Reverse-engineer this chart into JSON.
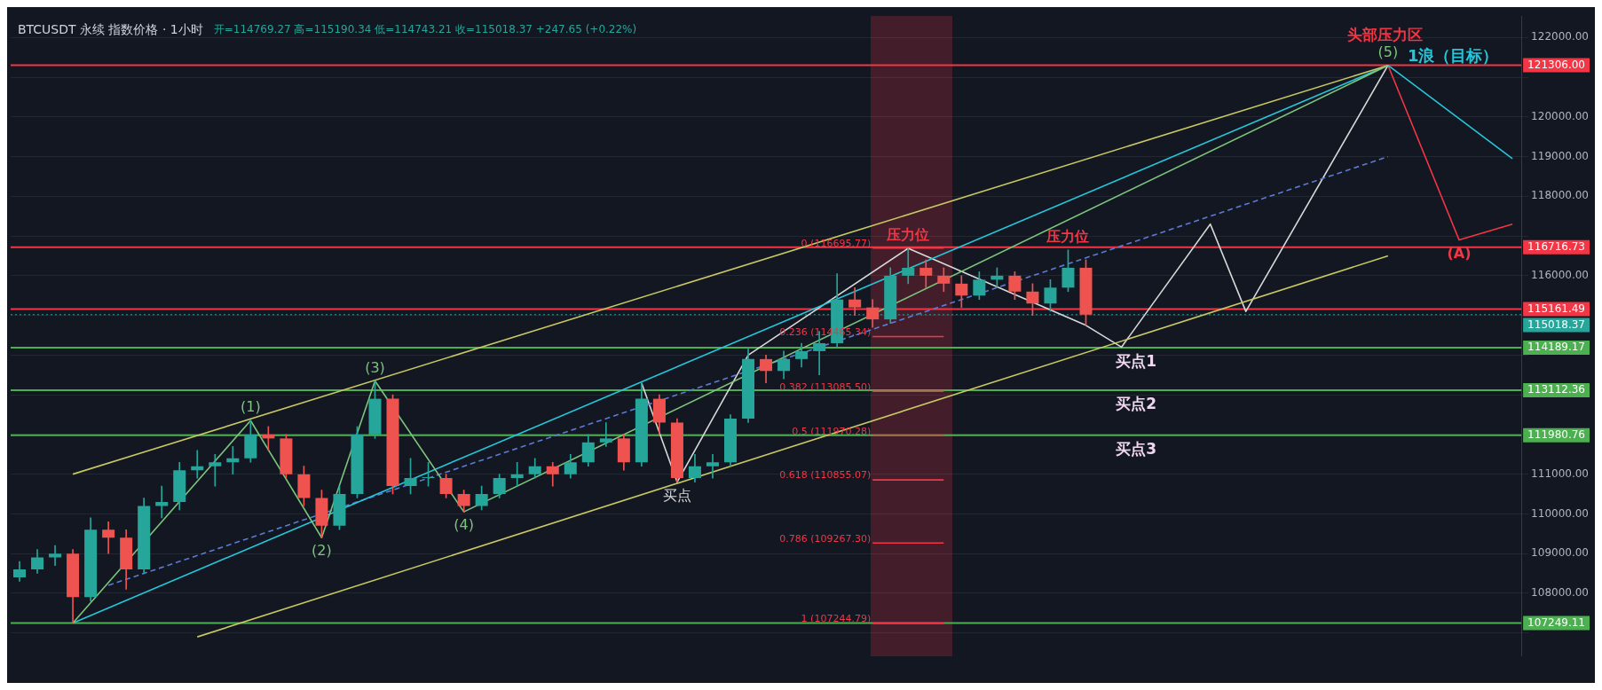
{
  "chart_data": {
    "type": "candlestick",
    "title": "BTCUSDT 永续 指数价格 · 1小时",
    "subtitle": "开=114769.27 高=115190.34 低=114743.21 收=115018.37 +247.65 (+0.22%)",
    "categories": [
      null,
      null,
      null,
      null,
      null,
      null,
      null,
      null,
      null,
      null,
      null,
      null,
      null,
      null,
      null,
      null,
      null,
      null,
      null,
      null,
      null,
      null,
      null,
      null,
      null,
      null,
      null,
      null,
      null,
      null,
      null,
      null,
      null,
      null,
      null,
      null,
      null,
      null,
      null,
      null,
      null,
      null,
      null,
      null,
      null,
      null,
      null,
      null,
      null,
      null,
      null,
      null,
      null,
      null,
      null,
      null,
      null,
      null,
      null,
      null,
      null,
      null,
      null,
      null,
      null,
      null,
      null,
      null,
      null,
      null,
      null,
      null,
      null,
      null,
      null,
      null,
      null,
      null,
      null,
      null,
      null,
      null,
      null,
      null,
      null
    ],
    "ohlc": [
      [
        108400,
        108800,
        108300,
        108600
      ],
      [
        108600,
        109100,
        108500,
        108900
      ],
      [
        108900,
        109200,
        108700,
        109000
      ],
      [
        109000,
        109100,
        107250,
        107900
      ],
      [
        107900,
        109900,
        107800,
        109600
      ],
      [
        109600,
        109800,
        109000,
        109400
      ],
      [
        109400,
        109600,
        108100,
        108600
      ],
      [
        108600,
        110400,
        108500,
        110200
      ],
      [
        110200,
        110700,
        109900,
        110300
      ],
      [
        110300,
        111300,
        110100,
        111100
      ],
      [
        111100,
        111600,
        110900,
        111200
      ],
      [
        111200,
        111500,
        110700,
        111300
      ],
      [
        111300,
        111700,
        111000,
        111400
      ],
      [
        111400,
        112350,
        111300,
        112000
      ],
      [
        112000,
        112200,
        111600,
        111900
      ],
      [
        111900,
        112000,
        110900,
        111000
      ],
      [
        111000,
        111200,
        110200,
        110400
      ],
      [
        110400,
        110600,
        109400,
        109700
      ],
      [
        109700,
        110700,
        109600,
        110500
      ],
      [
        110500,
        112200,
        110400,
        112000
      ],
      [
        112000,
        113350,
        111900,
        112900
      ],
      [
        112900,
        113000,
        110500,
        110700
      ],
      [
        110700,
        111400,
        110500,
        110900
      ],
      [
        110900,
        111300,
        110700,
        110900
      ],
      [
        110900,
        111000,
        110400,
        110500
      ],
      [
        110500,
        110600,
        110050,
        110200
      ],
      [
        110200,
        110700,
        110100,
        110500
      ],
      [
        110500,
        111000,
        110400,
        110900
      ],
      [
        110900,
        111300,
        110700,
        111000
      ],
      [
        111000,
        111400,
        110900,
        111200
      ],
      [
        111200,
        111300,
        110700,
        111000
      ],
      [
        111000,
        111500,
        110900,
        111300
      ],
      [
        111300,
        112000,
        111200,
        111800
      ],
      [
        111800,
        112300,
        111700,
        111900
      ],
      [
        111900,
        112000,
        111100,
        111300
      ],
      [
        111300,
        113300,
        111200,
        112900
      ],
      [
        112900,
        113000,
        112000,
        112300
      ],
      [
        112300,
        112400,
        110800,
        110900
      ],
      [
        110900,
        111500,
        110800,
        111200
      ],
      [
        111200,
        111500,
        110900,
        111300
      ],
      [
        111300,
        112500,
        111200,
        112400
      ],
      [
        112400,
        114200,
        112300,
        113900
      ],
      [
        113900,
        114000,
        113300,
        113600
      ],
      [
        113600,
        114100,
        113400,
        113900
      ],
      [
        113900,
        114300,
        113700,
        114100
      ],
      [
        114100,
        114600,
        113500,
        114300
      ],
      [
        114300,
        116050,
        114200,
        115400
      ],
      [
        115400,
        115700,
        115000,
        115200
      ],
      [
        115200,
        115400,
        114700,
        114900
      ],
      [
        114900,
        116200,
        114800,
        116000
      ],
      [
        116000,
        116700,
        115800,
        116200
      ],
      [
        116200,
        116400,
        115700,
        116000
      ],
      [
        116000,
        116200,
        115600,
        115800
      ],
      [
        115800,
        116000,
        115200,
        115500
      ],
      [
        115500,
        116100,
        115400,
        115900
      ],
      [
        115900,
        116200,
        115700,
        116000
      ],
      [
        116000,
        116100,
        115400,
        115600
      ],
      [
        115600,
        115800,
        115000,
        115300
      ],
      [
        115300,
        115900,
        115100,
        115700
      ],
      [
        115700,
        116650,
        115600,
        116200
      ],
      [
        116200,
        116400,
        114750,
        115018.37
      ],
      null,
      null,
      null,
      null,
      null,
      null,
      null,
      null,
      null,
      null,
      null,
      null,
      null,
      null,
      null,
      null,
      null,
      null,
      null,
      null,
      null,
      null,
      null,
      null
    ],
    "series": [
      {
        "type": "line",
        "color": "#7cc47c",
        "values": [
          null,
          null,
          null,
          107250,
          null,
          null,
          null,
          null,
          null,
          null,
          null,
          null,
          null,
          112350,
          null,
          null,
          null,
          109400,
          null,
          null,
          113350,
          null,
          null,
          null,
          null,
          110050,
          null,
          null,
          null,
          null,
          null,
          null,
          null,
          null,
          null,
          null,
          null,
          null,
          null,
          null,
          null,
          null,
          null,
          null,
          null,
          null,
          null,
          null,
          null,
          null,
          null,
          null,
          null,
          null,
          null,
          null,
          null,
          null,
          null,
          null,
          null,
          null,
          null,
          null,
          null,
          null,
          null,
          null,
          null,
          null,
          null,
          null,
          null,
          null,
          null,
          null,
          null,
          121300,
          null,
          null,
          null,
          null,
          null,
          null,
          null
        ]
      },
      {
        "type": "line",
        "color": "#c8c864",
        "values": [
          null,
          null,
          null,
          111000,
          null,
          null,
          null,
          null,
          null,
          null,
          null,
          null,
          null,
          null,
          null,
          null,
          null,
          null,
          null,
          null,
          null,
          null,
          null,
          null,
          null,
          null,
          null,
          null,
          null,
          null,
          null,
          null,
          null,
          null,
          null,
          null,
          null,
          null,
          null,
          null,
          null,
          null,
          null,
          null,
          null,
          null,
          null,
          null,
          null,
          null,
          null,
          null,
          null,
          null,
          null,
          null,
          null,
          null,
          null,
          null,
          null,
          null,
          null,
          null,
          null,
          null,
          null,
          null,
          null,
          null,
          null,
          null,
          null,
          null,
          null,
          null,
          null,
          121300,
          null,
          null,
          null,
          null,
          null,
          null,
          null
        ]
      },
      {
        "type": "line",
        "color": "#c8c864",
        "values": [
          null,
          null,
          null,
          null,
          null,
          null,
          null,
          null,
          null,
          null,
          106900,
          null,
          null,
          null,
          null,
          null,
          null,
          null,
          null,
          null,
          null,
          null,
          null,
          null,
          null,
          null,
          null,
          null,
          null,
          null,
          null,
          null,
          null,
          null,
          null,
          null,
          null,
          null,
          null,
          null,
          null,
          null,
          null,
          null,
          null,
          null,
          null,
          null,
          null,
          null,
          null,
          null,
          null,
          null,
          null,
          null,
          null,
          null,
          null,
          null,
          null,
          null,
          null,
          null,
          null,
          null,
          null,
          null,
          null,
          null,
          null,
          null,
          null,
          null,
          null,
          null,
          null,
          116500,
          null,
          null,
          null,
          null,
          null,
          null,
          null
        ]
      },
      {
        "type": "line",
        "color": "#26c6da",
        "values": [
          null,
          null,
          null,
          107250,
          null,
          null,
          null,
          null,
          null,
          null,
          null,
          null,
          null,
          null,
          null,
          null,
          null,
          null,
          null,
          null,
          null,
          null,
          null,
          null,
          null,
          null,
          null,
          null,
          null,
          null,
          null,
          null,
          null,
          null,
          null,
          null,
          null,
          null,
          null,
          null,
          null,
          null,
          null,
          null,
          null,
          null,
          null,
          null,
          null,
          null,
          null,
          null,
          null,
          null,
          null,
          null,
          null,
          null,
          null,
          null,
          null,
          null,
          null,
          null,
          null,
          null,
          null,
          null,
          null,
          null,
          null,
          null,
          null,
          null,
          null,
          null,
          null,
          121300,
          null,
          null,
          null,
          null,
          null,
          null,
          118950
        ]
      },
      {
        "type": "line",
        "color": "#5b7bd5",
        "line_style": "dashed",
        "values": [
          null,
          null,
          null,
          null,
          null,
          108200,
          null,
          null,
          null,
          null,
          null,
          null,
          null,
          null,
          null,
          null,
          null,
          null,
          null,
          null,
          null,
          null,
          null,
          null,
          null,
          null,
          null,
          null,
          null,
          null,
          null,
          null,
          null,
          null,
          null,
          null,
          null,
          null,
          null,
          null,
          null,
          null,
          null,
          null,
          null,
          null,
          null,
          null,
          null,
          null,
          null,
          null,
          null,
          null,
          null,
          null,
          null,
          null,
          null,
          null,
          null,
          null,
          null,
          null,
          null,
          null,
          null,
          null,
          null,
          null,
          null,
          null,
          null,
          null,
          null,
          null,
          null,
          119000,
          null,
          null,
          null,
          null,
          null,
          null,
          null
        ]
      },
      {
        "type": "line",
        "color": "#d8d8d8",
        "values": [
          null,
          null,
          null,
          null,
          null,
          null,
          null,
          null,
          null,
          null,
          null,
          null,
          null,
          null,
          null,
          null,
          null,
          null,
          null,
          null,
          null,
          null,
          null,
          null,
          null,
          null,
          null,
          null,
          null,
          null,
          null,
          null,
          null,
          null,
          null,
          113300,
          null,
          110800,
          null,
          null,
          null,
          114000,
          null,
          null,
          null,
          null,
          null,
          null,
          null,
          null,
          116690,
          null,
          null,
          null,
          null,
          null,
          null,
          null,
          null,
          null,
          114750,
          null,
          114200,
          null,
          null,
          null,
          null,
          117300,
          null,
          115100,
          null,
          null,
          null,
          null,
          null,
          null,
          null,
          121300,
          null,
          null,
          null,
          null,
          null,
          null,
          null
        ]
      },
      {
        "type": "line",
        "color": "#f23645",
        "values": [
          null,
          null,
          null,
          null,
          null,
          null,
          null,
          null,
          null,
          null,
          null,
          null,
          null,
          null,
          null,
          null,
          null,
          null,
          null,
          null,
          null,
          null,
          null,
          null,
          null,
          null,
          null,
          null,
          null,
          null,
          null,
          null,
          null,
          null,
          null,
          null,
          null,
          null,
          null,
          null,
          null,
          null,
          null,
          null,
          null,
          null,
          null,
          null,
          null,
          null,
          null,
          null,
          null,
          null,
          null,
          null,
          null,
          null,
          null,
          null,
          null,
          null,
          null,
          null,
          null,
          null,
          null,
          null,
          null,
          null,
          null,
          null,
          null,
          null,
          null,
          null,
          null,
          121300,
          null,
          null,
          null,
          116900,
          null,
          null,
          117300
        ]
      },
      {
        "type": "line",
        "color": "#f23645",
        "value_labels": [
          null,
          null,
          null,
          null,
          null,
          null,
          null,
          null,
          null,
          null,
          null,
          null,
          null,
          null,
          null,
          null,
          null,
          null,
          null,
          null,
          null,
          null,
          null,
          null,
          null,
          null,
          null,
          null,
          null,
          null,
          null,
          null,
          null,
          null,
          null,
          null,
          null,
          null,
          null,
          null,
          null,
          null,
          null,
          null,
          null,
          null,
          null,
          null,
          "0.236 (114465.34)",
          null,
          null,
          null,
          null,
          null,
          null,
          null,
          null,
          null,
          null,
          null,
          null,
          null,
          null,
          null,
          null,
          null,
          null,
          null,
          null,
          null,
          null,
          null,
          null,
          null,
          null,
          null,
          null,
          null,
          null,
          null,
          null,
          null,
          null,
          null,
          null
        ],
        "values": [
          null,
          null,
          null,
          null,
          null,
          null,
          null,
          null,
          null,
          null,
          null,
          null,
          null,
          null,
          null,
          null,
          null,
          null,
          null,
          null,
          null,
          null,
          null,
          null,
          null,
          null,
          null,
          null,
          null,
          null,
          null,
          null,
          null,
          null,
          null,
          null,
          null,
          null,
          null,
          null,
          null,
          null,
          null,
          null,
          null,
          null,
          null,
          null,
          114465.34,
          null,
          null,
          null,
          114465.34,
          null,
          null,
          null,
          null,
          null,
          null,
          null,
          null,
          null,
          null,
          null,
          null,
          null,
          null,
          null,
          null,
          null,
          null,
          null,
          null,
          null,
          null,
          null,
          null,
          null,
          null,
          null,
          null,
          null,
          null,
          null,
          null
        ]
      },
      {
        "type": "line",
        "color": "#f23645",
        "value_labels": [
          null,
          null,
          null,
          null,
          null,
          null,
          null,
          null,
          null,
          null,
          null,
          null,
          null,
          null,
          null,
          null,
          null,
          null,
          null,
          null,
          null,
          null,
          null,
          null,
          null,
          null,
          null,
          null,
          null,
          null,
          null,
          null,
          null,
          null,
          null,
          null,
          null,
          null,
          null,
          null,
          null,
          null,
          null,
          null,
          null,
          null,
          null,
          null,
          "0.382 (113085.50)",
          null,
          null,
          null,
          null,
          null,
          null,
          null,
          null,
          null,
          null,
          null,
          null,
          null,
          null,
          null,
          null,
          null,
          null,
          null,
          null,
          null,
          null,
          null,
          null,
          null,
          null,
          null,
          null,
          null,
          null,
          null,
          null,
          null,
          null,
          null,
          null
        ],
        "values": [
          null,
          null,
          null,
          null,
          null,
          null,
          null,
          null,
          null,
          null,
          null,
          null,
          null,
          null,
          null,
          null,
          null,
          null,
          null,
          null,
          null,
          null,
          null,
          null,
          null,
          null,
          null,
          null,
          null,
          null,
          null,
          null,
          null,
          null,
          null,
          null,
          null,
          null,
          null,
          null,
          null,
          null,
          null,
          null,
          null,
          null,
          null,
          null,
          113085.5,
          null,
          null,
          null,
          113085.5,
          null,
          null,
          null,
          null,
          null,
          null,
          null,
          null,
          null,
          null,
          null,
          null,
          null,
          null,
          null,
          null,
          null,
          null,
          null,
          null,
          null,
          null,
          null,
          null,
          null,
          null,
          null,
          null,
          null,
          null,
          null,
          null
        ]
      },
      {
        "type": "line",
        "color": "#f23645",
        "value_labels": [
          null,
          null,
          null,
          null,
          null,
          null,
          null,
          null,
          null,
          null,
          null,
          null,
          null,
          null,
          null,
          null,
          null,
          null,
          null,
          null,
          null,
          null,
          null,
          null,
          null,
          null,
          null,
          null,
          null,
          null,
          null,
          null,
          null,
          null,
          null,
          null,
          null,
          null,
          null,
          null,
          null,
          null,
          null,
          null,
          null,
          null,
          null,
          null,
          "0.5 (111970.28)",
          null,
          null,
          null,
          null,
          null,
          null,
          null,
          null,
          null,
          null,
          null,
          null,
          null,
          null,
          null,
          null,
          null,
          null,
          null,
          null,
          null,
          null,
          null,
          null,
          null,
          null,
          null,
          null,
          null,
          null,
          null,
          null,
          null,
          null,
          null,
          null
        ],
        "values": [
          null,
          null,
          null,
          null,
          null,
          null,
          null,
          null,
          null,
          null,
          null,
          null,
          null,
          null,
          null,
          null,
          null,
          null,
          null,
          null,
          null,
          null,
          null,
          null,
          null,
          null,
          null,
          null,
          null,
          null,
          null,
          null,
          null,
          null,
          null,
          null,
          null,
          null,
          null,
          null,
          null,
          null,
          null,
          null,
          null,
          null,
          null,
          null,
          111970.28,
          null,
          null,
          null,
          111970.28,
          null,
          null,
          null,
          null,
          null,
          null,
          null,
          null,
          null,
          null,
          null,
          null,
          null,
          null,
          null,
          null,
          null,
          null,
          null,
          null,
          null,
          null,
          null,
          null,
          null,
          null,
          null,
          null,
          null,
          null,
          null,
          null
        ]
      },
      {
        "type": "line",
        "color": "#f23645",
        "value_labels": [
          null,
          null,
          null,
          null,
          null,
          null,
          null,
          null,
          null,
          null,
          null,
          null,
          null,
          null,
          null,
          null,
          null,
          null,
          null,
          null,
          null,
          null,
          null,
          null,
          null,
          null,
          null,
          null,
          null,
          null,
          null,
          null,
          null,
          null,
          null,
          null,
          null,
          null,
          null,
          null,
          null,
          null,
          null,
          null,
          null,
          null,
          null,
          null,
          "0.618 (110855.07)",
          null,
          null,
          null,
          null,
          null,
          null,
          null,
          null,
          null,
          null,
          null,
          null,
          null,
          null,
          null,
          null,
          null,
          null,
          null,
          null,
          null,
          null,
          null,
          null,
          null,
          null,
          null,
          null,
          null,
          null,
          null,
          null,
          null,
          null,
          null,
          null
        ],
        "values": [
          null,
          null,
          null,
          null,
          null,
          null,
          null,
          null,
          null,
          null,
          null,
          null,
          null,
          null,
          null,
          null,
          null,
          null,
          null,
          null,
          null,
          null,
          null,
          null,
          null,
          null,
          null,
          null,
          null,
          null,
          null,
          null,
          null,
          null,
          null,
          null,
          null,
          null,
          null,
          null,
          null,
          null,
          null,
          null,
          null,
          null,
          null,
          null,
          110855.07,
          null,
          null,
          null,
          110855.07,
          null,
          null,
          null,
          null,
          null,
          null,
          null,
          null,
          null,
          null,
          null,
          null,
          null,
          null,
          null,
          null,
          null,
          null,
          null,
          null,
          null,
          null,
          null,
          null,
          null,
          null,
          null,
          null,
          null,
          null,
          null,
          null
        ]
      },
      {
        "type": "line",
        "color": "#f23645",
        "value_labels": [
          null,
          null,
          null,
          null,
          null,
          null,
          null,
          null,
          null,
          null,
          null,
          null,
          null,
          null,
          null,
          null,
          null,
          null,
          null,
          null,
          null,
          null,
          null,
          null,
          null,
          null,
          null,
          null,
          null,
          null,
          null,
          null,
          null,
          null,
          null,
          null,
          null,
          null,
          null,
          null,
          null,
          null,
          null,
          null,
          null,
          null,
          null,
          null,
          "0.786 (109267.30)",
          null,
          null,
          null,
          null,
          null,
          null,
          null,
          null,
          null,
          null,
          null,
          null,
          null,
          null,
          null,
          null,
          null,
          null,
          null,
          null,
          null,
          null,
          null,
          null,
          null,
          null,
          null,
          null,
          null,
          null,
          null,
          null,
          null,
          null,
          null,
          null
        ],
        "values": [
          null,
          null,
          null,
          null,
          null,
          null,
          null,
          null,
          null,
          null,
          null,
          null,
          null,
          null,
          null,
          null,
          null,
          null,
          null,
          null,
          null,
          null,
          null,
          null,
          null,
          null,
          null,
          null,
          null,
          null,
          null,
          null,
          null,
          null,
          null,
          null,
          null,
          null,
          null,
          null,
          null,
          null,
          null,
          null,
          null,
          null,
          null,
          null,
          109267.3,
          null,
          null,
          null,
          109267.3,
          null,
          null,
          null,
          null,
          null,
          null,
          null,
          null,
          null,
          null,
          null,
          null,
          null,
          null,
          null,
          null,
          null,
          null,
          null,
          null,
          null,
          null,
          null,
          null,
          null,
          null,
          null,
          null,
          null,
          null,
          null,
          null
        ]
      },
      {
        "type": "line",
        "color": "#f23645",
        "value_labels": [
          null,
          null,
          null,
          null,
          null,
          null,
          null,
          null,
          null,
          null,
          null,
          null,
          null,
          null,
          null,
          null,
          null,
          null,
          null,
          null,
          null,
          null,
          null,
          null,
          null,
          null,
          null,
          null,
          null,
          null,
          null,
          null,
          null,
          null,
          null,
          null,
          null,
          null,
          null,
          null,
          null,
          null,
          null,
          null,
          null,
          null,
          null,
          null,
          "1 (107244.79)",
          null,
          null,
          null,
          null,
          null,
          null,
          null,
          null,
          null,
          null,
          null,
          null,
          null,
          null,
          null,
          null,
          null,
          null,
          null,
          null,
          null,
          null,
          null,
          null,
          null,
          null,
          null,
          null,
          null,
          null,
          null,
          null,
          null,
          null,
          null,
          null
        ],
        "values": [
          null,
          null,
          null,
          null,
          null,
          null,
          null,
          null,
          null,
          null,
          null,
          null,
          null,
          null,
          null,
          null,
          null,
          null,
          null,
          null,
          null,
          null,
          null,
          null,
          null,
          null,
          null,
          null,
          null,
          null,
          null,
          null,
          null,
          null,
          null,
          null,
          null,
          null,
          null,
          null,
          null,
          null,
          null,
          null,
          null,
          null,
          null,
          null,
          107244.79,
          null,
          null,
          null,
          107244.79,
          null,
          null,
          null,
          null,
          null,
          null,
          null,
          null,
          null,
          null,
          null,
          null,
          null,
          null,
          null,
          null,
          null,
          null,
          null,
          null,
          null,
          null,
          null,
          null,
          null,
          null,
          null,
          null,
          null,
          null,
          null,
          null
        ]
      },
      {
        "type": "line",
        "color": "#f23645",
        "value_labels": [
          null,
          null,
          null,
          null,
          null,
          null,
          null,
          null,
          null,
          null,
          null,
          null,
          null,
          null,
          null,
          null,
          null,
          null,
          null,
          null,
          null,
          null,
          null,
          null,
          null,
          null,
          null,
          null,
          null,
          null,
          null,
          null,
          null,
          null,
          null,
          null,
          null,
          null,
          null,
          null,
          null,
          null,
          null,
          null,
          null,
          null,
          null,
          null,
          "0 (116695.77)",
          null,
          null,
          null,
          null,
          null,
          null,
          null,
          null,
          null,
          null,
          null,
          null,
          null,
          null,
          null,
          null,
          null,
          null,
          null,
          null,
          null,
          null,
          null,
          null,
          null,
          null,
          null,
          null,
          null,
          null,
          null,
          null,
          null,
          null,
          null,
          null
        ],
        "values": [
          null,
          null,
          null,
          null,
          null,
          null,
          null,
          null,
          null,
          null,
          null,
          null,
          null,
          null,
          null,
          null,
          null,
          null,
          null,
          null,
          null,
          null,
          null,
          null,
          null,
          null,
          null,
          null,
          null,
          null,
          null,
          null,
          null,
          null,
          null,
          null,
          null,
          null,
          null,
          null,
          null,
          null,
          null,
          null,
          null,
          null,
          null,
          null,
          116695.77,
          null,
          null,
          null,
          116695.77,
          null,
          null,
          null,
          null,
          null,
          null,
          null,
          null,
          null,
          null,
          null,
          null,
          null,
          null,
          null,
          null,
          null,
          null,
          null,
          null,
          null,
          null,
          null,
          null,
          null,
          null,
          null,
          null,
          null,
          null,
          null,
          null
        ]
      }
    ],
    "ylim": [
      106420,
      122540
    ],
    "yticks": [
      {
        "value": 107000,
        "label": null
      },
      {
        "value": 108000,
        "label": "108000.00"
      },
      {
        "value": 109000,
        "label": "109000.00"
      },
      {
        "value": 110000,
        "label": "110000.00"
      },
      {
        "value": 111000,
        "label": "111000.00"
      },
      {
        "value": 112000,
        "label": null
      },
      {
        "value": 113000,
        "label": null
      },
      {
        "value": 114000,
        "label": null
      },
      {
        "value": 115000,
        "label": null
      },
      {
        "value": 116000,
        "label": "116000.00"
      },
      {
        "value": 117000,
        "label": null
      },
      {
        "value": 118000,
        "label": "118000.00"
      },
      {
        "value": 119000,
        "label": "119000.00"
      },
      {
        "value": 120000,
        "label": "120000.00"
      },
      {
        "value": 121000,
        "label": null
      },
      {
        "value": 122000,
        "label": "122000.00"
      }
    ],
    "grid": "y",
    "legend": false,
    "marker": "none",
    "ref_lines": [
      {
        "axis": "y",
        "value": 121306.0,
        "label": "121306.00",
        "color": "#f23645"
      },
      {
        "axis": "y",
        "value": 116716.73,
        "label": "116716.73",
        "color": "#f23645"
      },
      {
        "axis": "y",
        "value": 115161.49,
        "label": "115161.49",
        "color": "#f23645"
      },
      {
        "axis": "y",
        "value": 115018.37,
        "label": "115018.37",
        "color": "#26a69a",
        "line_style": "dotted"
      },
      {
        "axis": "y",
        "value": 114189.17,
        "label": "114189.17",
        "color": "#4caf50"
      },
      {
        "axis": "y",
        "value": 113112.36,
        "label": "113112.36",
        "color": "#4caf50"
      },
      {
        "axis": "y",
        "value": 111980.76,
        "label": "111980.76",
        "color": "#4caf50"
      },
      {
        "axis": "y",
        "value": 107249.11,
        "label": "107249.11",
        "color": "#4caf50"
      }
    ],
    "annotations": [
      "1浪（目标）",
      {
        "text": "头部压力区",
        "y": 121306.0
      },
      {
        "text": "买点1",
        "y": 114189.17
      },
      {
        "text": "买点2",
        "y": 113112.36
      },
      {
        "text": "买点3",
        "y": 111980.76
      },
      {
        "text": "(1)",
        "y": 112350
      },
      {
        "text": "(2)",
        "y": 109400
      },
      {
        "text": "(3)",
        "y": 113350
      },
      {
        "text": "(4)",
        "y": 110050
      },
      {
        "text": "(5)",
        "y": 121300
      },
      {
        "text": "(A)",
        "y": 116900
      },
      {
        "text": "买点",
        "y": 110800
      },
      {
        "text": "压力位",
        "y": 116700
      },
      {
        "text": "压力位",
        "y": 116650
      }
    ]
  }
}
